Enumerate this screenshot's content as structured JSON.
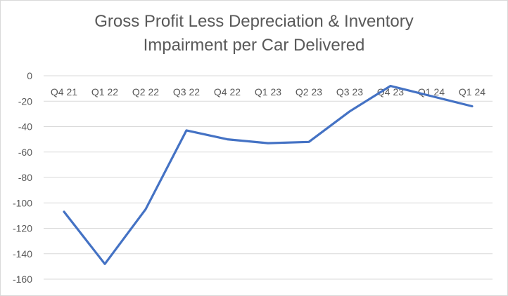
{
  "chart_data": {
    "type": "line",
    "title_line1": "Gross Profit Less Depreciation & Inventory",
    "title_line2": "Impairment per Car Delivered",
    "xlabel": "",
    "ylabel": "",
    "categories": [
      "Q4 21",
      "Q1 22",
      "Q2 22",
      "Q3 22",
      "Q4 22",
      "Q1 23",
      "Q2 23",
      "Q3 23",
      "Q4 23",
      "Q1 24",
      "Q1 24"
    ],
    "series": [
      {
        "values": [
          -107,
          -148,
          -105,
          -43,
          -50,
          -53,
          -52,
          -28,
          -8,
          -16,
          -24
        ]
      }
    ],
    "ylim": [
      -160,
      0
    ],
    "yticks": [
      0,
      -20,
      -40,
      -60,
      -80,
      -100,
      -120,
      -140,
      -160
    ],
    "grid": true,
    "line_color": "#4472c4",
    "grid_color": "#d9d9d9",
    "x_labels_position": "top"
  }
}
